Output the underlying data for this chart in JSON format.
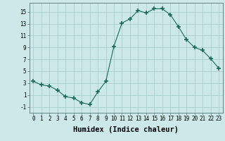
{
  "x": [
    0,
    1,
    2,
    3,
    4,
    5,
    6,
    7,
    8,
    9,
    10,
    11,
    12,
    13,
    14,
    15,
    16,
    17,
    18,
    19,
    20,
    21,
    22,
    23
  ],
  "y": [
    3.3,
    2.7,
    2.5,
    1.8,
    0.7,
    0.5,
    -0.3,
    -0.6,
    1.5,
    3.3,
    9.2,
    13.1,
    13.8,
    15.2,
    14.8,
    15.5,
    15.5,
    14.5,
    12.5,
    10.3,
    9.0,
    8.5,
    7.1,
    5.5
  ],
  "line_color": "#1a6b5a",
  "marker": "+",
  "marker_size": 4,
  "bg_color": "#cce8e8",
  "grid_color": "#aacfcf",
  "xlabel": "Humidex (Indice chaleur)",
  "xlim": [
    -0.5,
    23.5
  ],
  "ylim": [
    -2.0,
    16.5
  ],
  "yticks": [
    -1,
    1,
    3,
    5,
    7,
    9,
    11,
    13,
    15
  ],
  "xticks": [
    0,
    1,
    2,
    3,
    4,
    5,
    6,
    7,
    8,
    9,
    10,
    11,
    12,
    13,
    14,
    15,
    16,
    17,
    18,
    19,
    20,
    21,
    22,
    23
  ],
  "tick_fontsize": 5.5,
  "label_fontsize": 7.5
}
